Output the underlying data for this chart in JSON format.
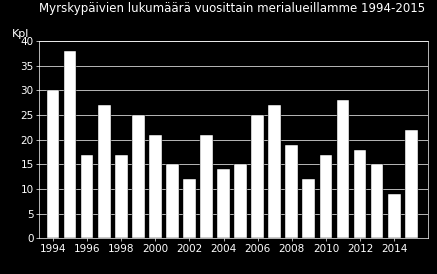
{
  "title": "Myrskypäivien lukumäärä vuosittain merialueillamme 1994-2015",
  "ylabel": "Kpl",
  "years": [
    1994,
    1995,
    1996,
    1997,
    1998,
    1999,
    2000,
    2001,
    2002,
    2003,
    2004,
    2005,
    2006,
    2007,
    2008,
    2009,
    2010,
    2011,
    2012,
    2013,
    2014,
    2015
  ],
  "values": [
    30,
    38,
    17,
    27,
    17,
    25,
    21,
    15,
    12,
    21,
    14,
    15,
    25,
    27,
    19,
    12,
    17,
    28,
    18,
    15,
    9,
    22
  ],
  "bar_color": "#ffffff",
  "background_color": "#000000",
  "text_color": "#ffffff",
  "grid_color": "#ffffff",
  "ylim": [
    0,
    40
  ],
  "yticks": [
    0,
    5,
    10,
    15,
    20,
    25,
    30,
    35,
    40
  ],
  "xtick_years": [
    1994,
    1996,
    1998,
    2000,
    2002,
    2004,
    2006,
    2008,
    2010,
    2012,
    2014
  ],
  "title_fontsize": 8.5,
  "ylabel_fontsize": 8,
  "tick_fontsize": 7.5,
  "bar_width": 0.75,
  "xlim": [
    1993.2,
    2016.0
  ]
}
